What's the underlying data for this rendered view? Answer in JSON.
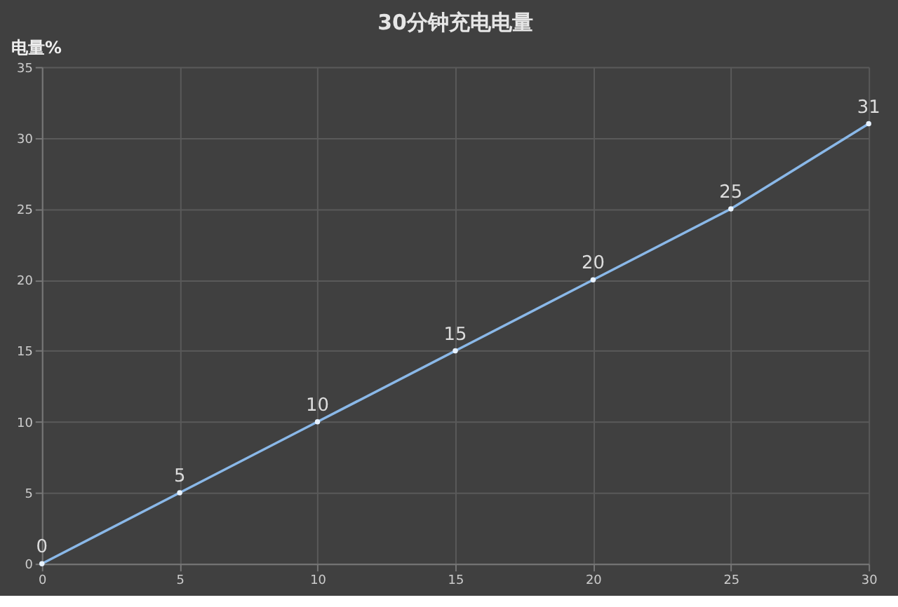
{
  "chart_data": {
    "type": "line",
    "title": "30分钟充电电量",
    "ylabel": "电量%",
    "x": [
      0,
      5,
      10,
      15,
      20,
      25,
      30
    ],
    "series": [
      {
        "color": "#8ab8e8",
        "values": [
          0,
          5,
          10,
          15,
          20,
          25,
          31
        ]
      }
    ],
    "xlim": [
      0,
      30
    ],
    "xticks": [
      0,
      5,
      10,
      15,
      20,
      25,
      30
    ],
    "ylim": [
      0,
      35
    ],
    "yticks": [
      0,
      5,
      10,
      15,
      20,
      25,
      30,
      35
    ],
    "grid": true,
    "data_labels": true,
    "marker": "circle",
    "line_style": "solid"
  }
}
